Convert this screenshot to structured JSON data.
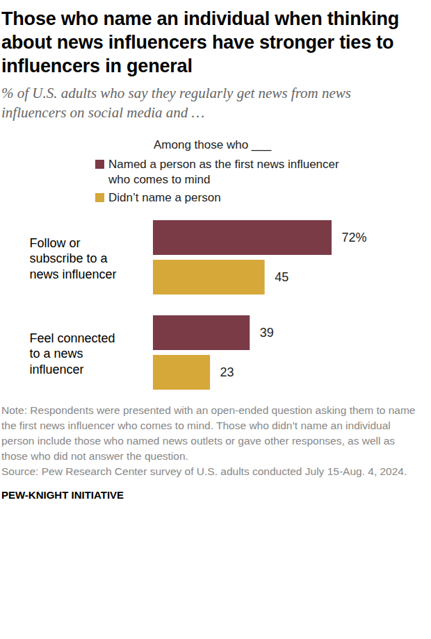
{
  "chart_data": {
    "type": "bar",
    "orientation": "horizontal",
    "title": "Those who name an individual when thinking about news influencers have stronger ties to influencers in general",
    "subtitle": "% of U.S. adults who say they regularly get news from news influencers on social media and …",
    "legend_title": "Among those who ___",
    "categories": [
      "Follow or subscribe to a news influencer",
      "Feel connected to a news influencer"
    ],
    "series": [
      {
        "name": "Named a person as the first news influencer who comes to mind",
        "color": "#7a3b47",
        "values": [
          72,
          39
        ],
        "value_labels": [
          "72%",
          "39"
        ]
      },
      {
        "name": "Didn’t name a person",
        "color": "#d6a83a",
        "values": [
          45,
          23
        ],
        "value_labels": [
          "45",
          "23"
        ]
      }
    ],
    "xlim": [
      0,
      72
    ],
    "tick_labels": false,
    "data_labels": true,
    "note": "Note: Respondents were presented with an open-ended question asking them to name the first news influencer who comes to mind. Those who didn’t name an individual person include those who named news outlets or gave other responses, as well as those who did not answer the question.",
    "source": "Source: Pew Research Center survey of U.S. adults conducted July 15-Aug. 4, 2024.",
    "footer": "PEW-KNIGHT INITIATIVE"
  }
}
